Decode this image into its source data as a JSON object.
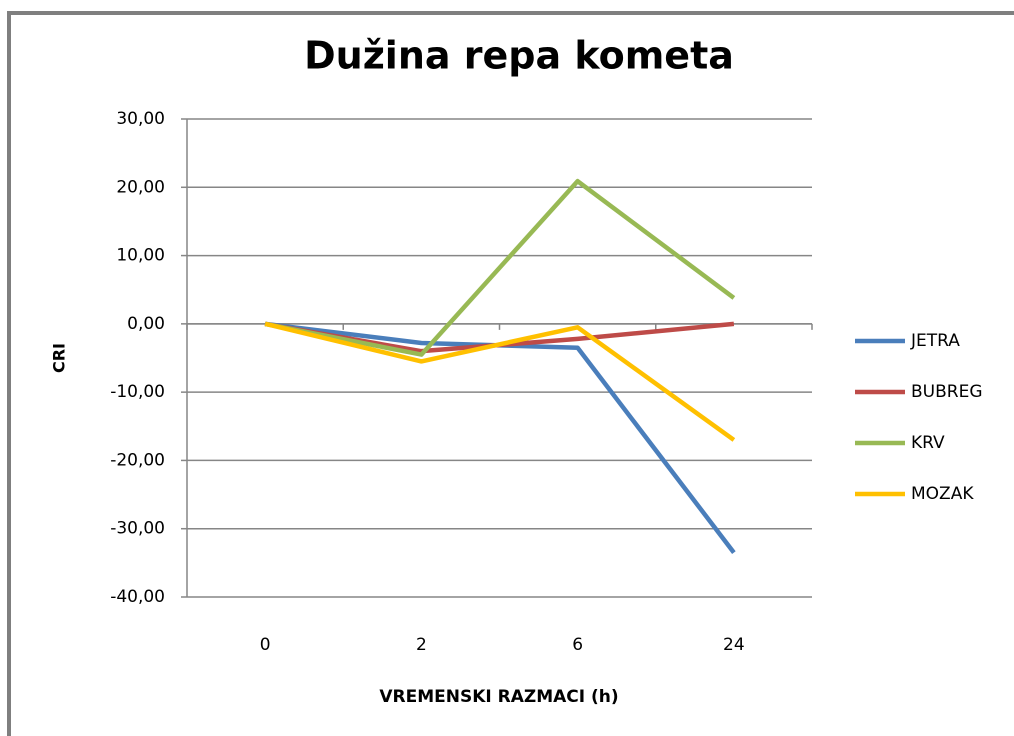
{
  "chart_data": {
    "type": "line",
    "title": "Dužina repa kometa",
    "x_label": "VREMENSKI RAZMACI (h)",
    "y_label": "CRI",
    "categories": [
      "0",
      "2",
      "6",
      "24"
    ],
    "series": [
      {
        "name": "JETRA",
        "color": "#4a7ebb",
        "values": [
          0,
          -2.8,
          -3.5,
          -33.5
        ]
      },
      {
        "name": "BUBREG",
        "color": "#be4b48",
        "values": [
          0,
          -4.0,
          -2.2,
          0
        ]
      },
      {
        "name": "KRV",
        "color": "#98b954",
        "values": [
          0,
          -4.5,
          20.9,
          3.8
        ]
      },
      {
        "name": "MOZAK",
        "color": "#ffc000",
        "values": [
          0,
          -5.5,
          -0.5,
          -17
        ]
      }
    ],
    "ylim": [
      -40,
      30
    ],
    "yticks": [
      {
        "value": -40,
        "label": "-40,00"
      },
      {
        "value": -30,
        "label": "-30,00"
      },
      {
        "value": -20,
        "label": "-20,00"
      },
      {
        "value": -10,
        "label": "-10,00"
      },
      {
        "value": 0,
        "label": "0,00"
      },
      {
        "value": 10,
        "label": "10,00"
      },
      {
        "value": 20,
        "label": "20,00"
      },
      {
        "value": 30,
        "label": "30,00"
      }
    ],
    "grid": true,
    "legend": "right"
  }
}
